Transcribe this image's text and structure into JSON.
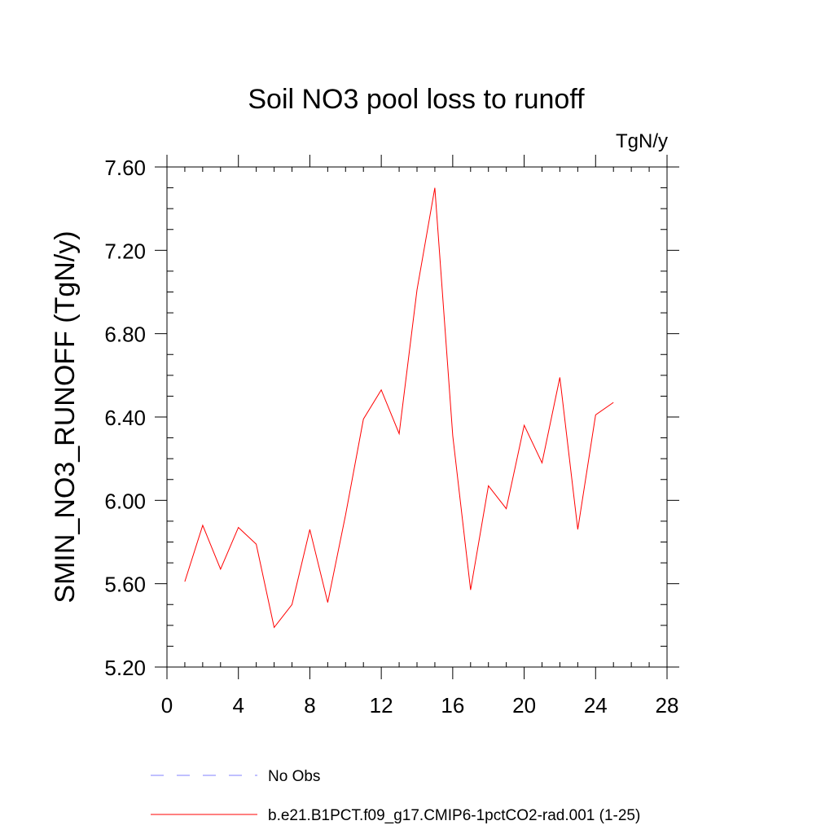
{
  "chart_data": {
    "type": "line",
    "title": "Soil NO3 pool loss to runoff",
    "units": "TgN/y",
    "xlabel": "",
    "ylabel": "SMIN_NO3_RUNOFF  (TgN/y)",
    "xlim": [
      0,
      28
    ],
    "ylim": [
      5.2,
      7.6
    ],
    "xticks": [
      0,
      4,
      8,
      12,
      16,
      20,
      24,
      28
    ],
    "xtick_labels": [
      "0",
      "4",
      "8",
      "12",
      "16",
      "20",
      "24",
      "28"
    ],
    "yticks": [
      5.2,
      5.6,
      6.0,
      6.4,
      6.8,
      7.2,
      7.6
    ],
    "ytick_labels": [
      "5.20",
      "5.60",
      "6.00",
      "6.40",
      "6.80",
      "7.20",
      "7.60"
    ],
    "grid": false,
    "legend_position": "bottom",
    "series": [
      {
        "name": "No Obs",
        "color": "#8080ff",
        "dash": true,
        "x": [],
        "y": []
      },
      {
        "name": "b.e21.B1PCT.f09_g17.CMIP6-1pctCO2-rad.001 (1-25)",
        "color": "#ff0000",
        "dash": false,
        "x": [
          1,
          2,
          3,
          4,
          5,
          6,
          7,
          8,
          9,
          10,
          11,
          12,
          13,
          14,
          15,
          16,
          17,
          18,
          19,
          20,
          21,
          22,
          23,
          24,
          25
        ],
        "y": [
          5.61,
          5.88,
          5.67,
          5.87,
          5.79,
          5.39,
          5.5,
          5.86,
          5.51,
          5.93,
          6.39,
          6.53,
          6.32,
          7.01,
          7.5,
          6.31,
          5.57,
          6.07,
          5.96,
          6.36,
          6.18,
          6.59,
          5.86,
          6.41,
          6.47
        ]
      }
    ]
  }
}
